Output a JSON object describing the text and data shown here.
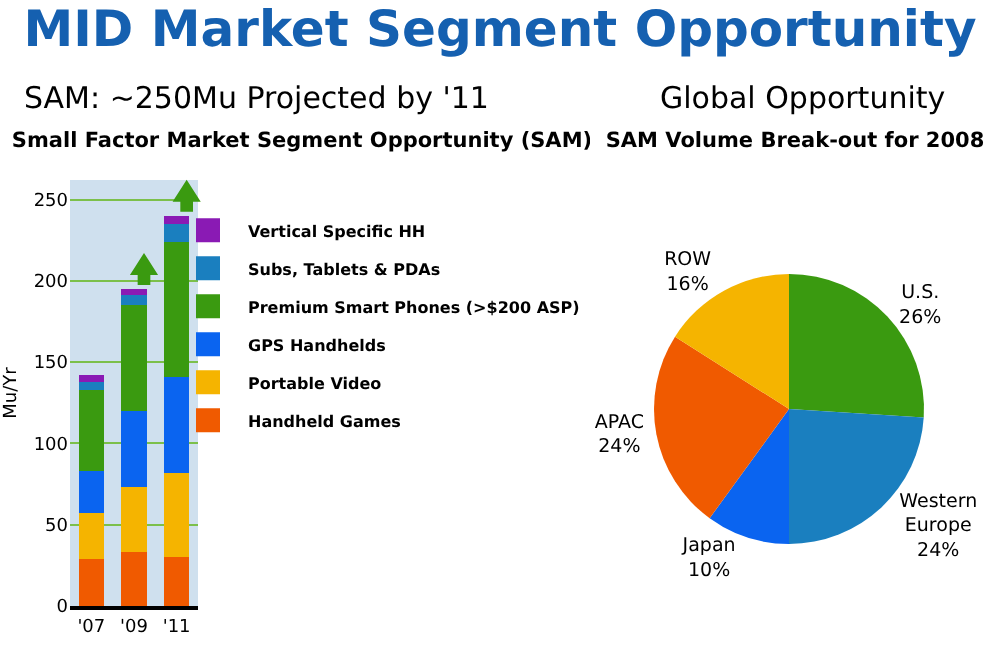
{
  "chart_data": [
    {
      "type": "bar",
      "title": "Small Factor Market Segment Opportunity (SAM)",
      "annotations": [
        "MID Market Segment Opportunity",
        "SAM:  ~250Mu Projected by '11"
      ],
      "ylabel": "Mu/Yr",
      "categories": [
        "'07",
        "'09",
        "'11"
      ],
      "stacked": true,
      "ylim": [
        0,
        262
      ],
      "yticks": [
        0,
        50,
        100,
        150,
        200,
        250
      ],
      "grid": "y",
      "legend": "right",
      "series": [
        {
          "name": "Handheld Games",
          "color": "#f05a00",
          "values": [
            29,
            33,
            30
          ]
        },
        {
          "name": "Portable Video",
          "color": "#f5b400",
          "values": [
            28,
            40,
            52
          ]
        },
        {
          "name": "GPS Handhelds",
          "color": "#0a64f0",
          "values": [
            26,
            47,
            59
          ]
        },
        {
          "name": "Premium Smart Phones (>$200 ASP)",
          "color": "#3a9a10",
          "values": [
            50,
            65,
            83
          ]
        },
        {
          "name": "Subs, Tablets & PDAs",
          "color": "#1a7fbf",
          "values": [
            5,
            6,
            11
          ]
        },
        {
          "name": "Vertical Specific HH",
          "color": "#8a1ab4",
          "values": [
            4,
            4,
            5
          ]
        }
      ]
    },
    {
      "type": "pie",
      "title": "SAM Volume Break-out for 2008",
      "annotations": [
        "Global Opportunity"
      ],
      "categories": [
        "U.S.",
        "Western Europe",
        "Japan",
        "APAC",
        "ROW"
      ],
      "values": [
        26,
        24,
        10,
        24,
        16
      ],
      "value_labels": [
        "26%",
        "24%",
        "10%",
        "24%",
        "16%"
      ],
      "colors": [
        "#3a9a10",
        "#1a7fbf",
        "#0a64f0",
        "#f05a00",
        "#f5b400"
      ]
    }
  ]
}
